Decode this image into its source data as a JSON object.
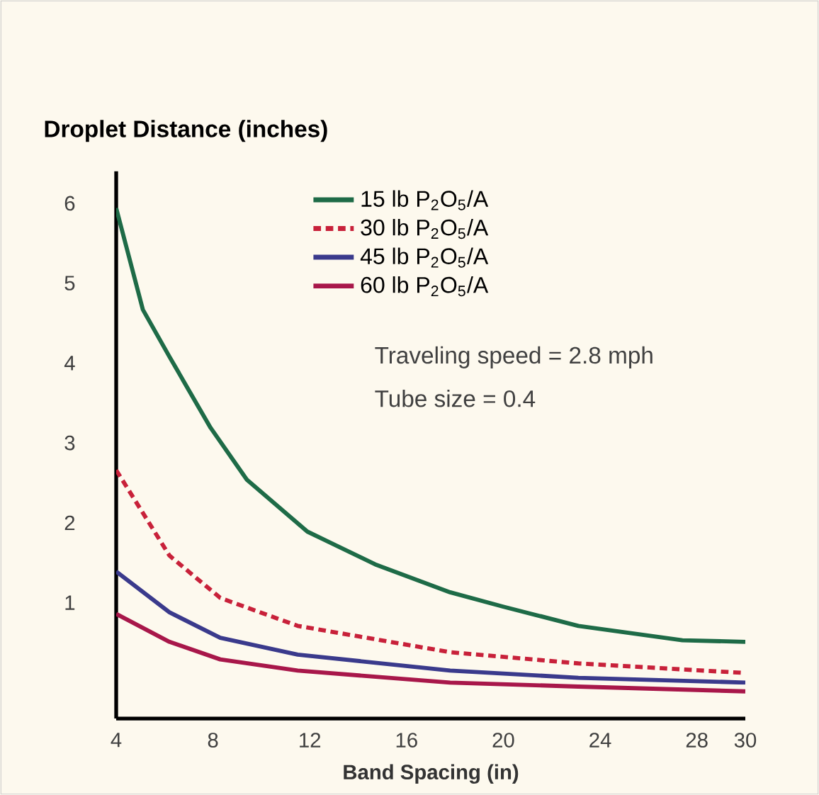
{
  "chart_data": {
    "type": "line",
    "ylabel": "Droplet Distance (inches)",
    "xlabel": "Band Spacing (in)",
    "xlim": [
      4,
      30
    ],
    "xticks": [
      4,
      8,
      12,
      16,
      20,
      24,
      28,
      30
    ],
    "ylim": [
      -0.45,
      6.4
    ],
    "yticks": [
      1,
      2,
      3,
      4,
      5,
      6
    ],
    "grid": false,
    "legend": "top",
    "marker": "none",
    "annotations": [
      "Traveling speed = 2.8 mph",
      "Tube size = 0.4"
    ],
    "series": [
      {
        "name": "15 lb P$_{2}$O$_{5}$/A",
        "color": "#1e6b47",
        "line_style": "solid",
        "x": [
          4,
          5.1,
          6.2,
          7.9,
          9.4,
          11.9,
          14.7,
          17.8,
          20,
          23.1,
          27.4,
          30
        ],
        "values": [
          5.94,
          4.67,
          4.08,
          3.19,
          2.54,
          1.89,
          1.48,
          1.13,
          0.95,
          0.71,
          0.53,
          0.51
        ]
      },
      {
        "name": "30 lb P$_{2}$O$_{5}$/A",
        "color": "#c8213a",
        "line_style": "dashed",
        "x": [
          4,
          6.2,
          8.3,
          11.5,
          17.8,
          23.1,
          30
        ],
        "values": [
          2.66,
          1.59,
          1.06,
          0.71,
          0.38,
          0.24,
          0.12
        ]
      },
      {
        "name": "45 lb P$_{2}$O$_{5}$/A",
        "color": "#3a3a8c",
        "line_style": "solid",
        "x": [
          4,
          6.2,
          8.3,
          11.5,
          17.8,
          23.1,
          30
        ],
        "values": [
          1.39,
          0.88,
          0.56,
          0.35,
          0.15,
          0.06,
          0.0
        ]
      },
      {
        "name": "60 lb P$_{2}$O$_{5}$/A",
        "color": "#a8174a",
        "line_style": "solid",
        "x": [
          4,
          6.2,
          8.3,
          11.5,
          17.8,
          23.1,
          30
        ],
        "values": [
          0.86,
          0.51,
          0.29,
          0.15,
          0.0,
          -0.05,
          -0.11
        ]
      }
    ]
  }
}
